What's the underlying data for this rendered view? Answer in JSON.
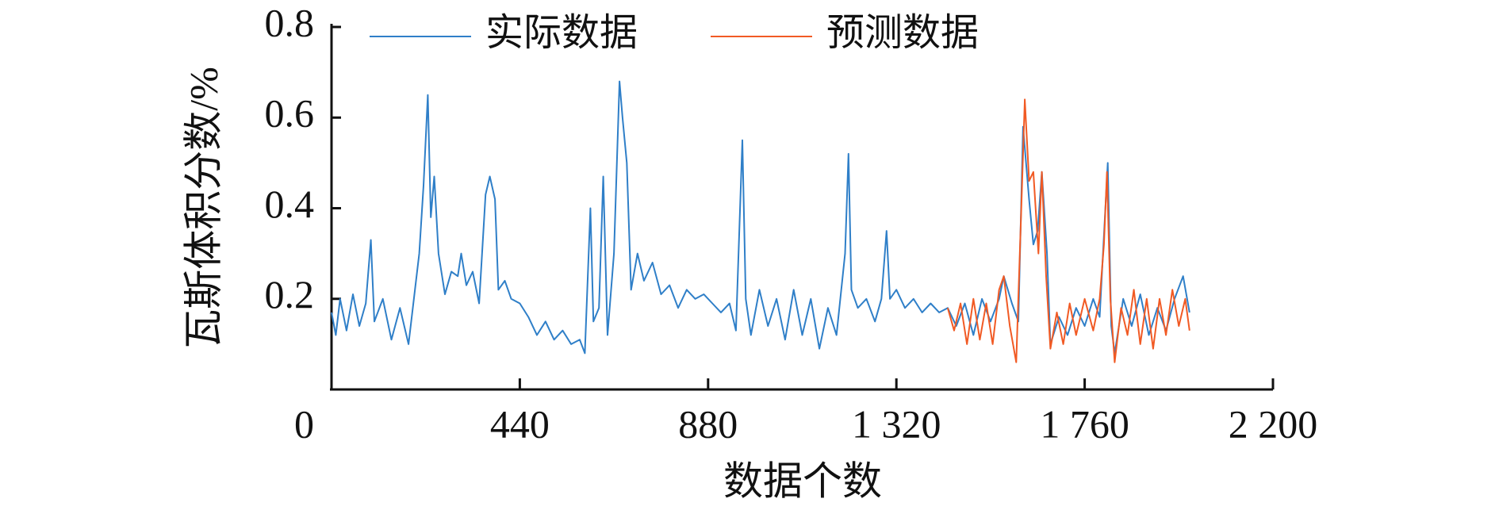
{
  "chart_data": {
    "type": "line",
    "x_label": "数据个数",
    "y_label": "瓦斯体积分数/%",
    "xlim": [
      0,
      2200
    ],
    "xticks": [
      0,
      440,
      880,
      {
        "value": 1320,
        "label": "1 320"
      },
      {
        "value": 1760,
        "label": "1 760"
      },
      {
        "value": 2200,
        "label": "2 200"
      }
    ],
    "ylim": [
      0,
      0.8
    ],
    "yticks": [
      0.2,
      0.4,
      0.6,
      0.8
    ],
    "legend": "top",
    "grid": false,
    "series": [
      {
        "name": "实际数据",
        "color": "#2f7fc8",
        "x": [
          0,
          10,
          20,
          35,
          50,
          65,
          80,
          92,
          100,
          120,
          140,
          160,
          180,
          195,
          205,
          215,
          225,
          232,
          240,
          250,
          265,
          280,
          295,
          303,
          315,
          330,
          345,
          360,
          370,
          382,
          390,
          405,
          420,
          440,
          460,
          480,
          500,
          520,
          540,
          560,
          580,
          592,
          605,
          612,
          625,
          635,
          645,
          660,
          673,
          680,
          690,
          700,
          715,
          730,
          750,
          770,
          790,
          810,
          830,
          850,
          870,
          890,
          910,
          930,
          945,
          960,
          968,
          980,
          1000,
          1020,
          1040,
          1060,
          1080,
          1100,
          1120,
          1140,
          1160,
          1180,
          1200,
          1208,
          1215,
          1230,
          1250,
          1270,
          1285,
          1297,
          1305,
          1320,
          1340,
          1360,
          1380,
          1400,
          1420,
          1440,
          1460,
          1480,
          1500,
          1520,
          1540,
          1560,
          1571,
          1590,
          1605,
          1616,
          1630,
          1640,
          1650,
          1660,
          1672,
          1680,
          1700,
          1720,
          1740,
          1760,
          1780,
          1795,
          1814,
          1822,
          1830,
          1850,
          1870,
          1890,
          1910,
          1930,
          1950,
          1970,
          1990,
          2005
        ],
        "values": [
          0.17,
          0.12,
          0.2,
          0.13,
          0.21,
          0.14,
          0.19,
          0.33,
          0.15,
          0.2,
          0.11,
          0.18,
          0.1,
          0.22,
          0.3,
          0.45,
          0.65,
          0.38,
          0.47,
          0.3,
          0.21,
          0.26,
          0.25,
          0.3,
          0.23,
          0.26,
          0.19,
          0.43,
          0.47,
          0.42,
          0.22,
          0.24,
          0.2,
          0.19,
          0.16,
          0.12,
          0.15,
          0.11,
          0.13,
          0.1,
          0.11,
          0.08,
          0.4,
          0.15,
          0.18,
          0.47,
          0.12,
          0.3,
          0.68,
          0.6,
          0.5,
          0.22,
          0.3,
          0.24,
          0.28,
          0.21,
          0.23,
          0.18,
          0.22,
          0.2,
          0.21,
          0.19,
          0.17,
          0.19,
          0.13,
          0.55,
          0.2,
          0.12,
          0.22,
          0.14,
          0.2,
          0.11,
          0.22,
          0.12,
          0.2,
          0.09,
          0.18,
          0.12,
          0.3,
          0.52,
          0.22,
          0.18,
          0.2,
          0.15,
          0.2,
          0.35,
          0.2,
          0.22,
          0.18,
          0.2,
          0.17,
          0.19,
          0.17,
          0.18,
          0.14,
          0.19,
          0.12,
          0.2,
          0.15,
          0.2,
          0.25,
          0.19,
          0.15,
          0.58,
          0.42,
          0.32,
          0.35,
          0.48,
          0.3,
          0.1,
          0.16,
          0.12,
          0.18,
          0.14,
          0.2,
          0.16,
          0.5,
          0.14,
          0.08,
          0.2,
          0.14,
          0.21,
          0.12,
          0.18,
          0.13,
          0.2,
          0.25,
          0.17
        ]
      },
      {
        "name": "预测数据",
        "color": "#f15a24",
        "x": [
          1440,
          1455,
          1470,
          1485,
          1500,
          1515,
          1530,
          1545,
          1560,
          1571,
          1585,
          1600,
          1612,
          1620,
          1630,
          1640,
          1652,
          1660,
          1670,
          1680,
          1695,
          1710,
          1725,
          1740,
          1760,
          1780,
          1795,
          1805,
          1812,
          1820,
          1830,
          1845,
          1860,
          1875,
          1890,
          1905,
          1920,
          1935,
          1950,
          1965,
          1980,
          1995,
          2005
        ],
        "values": [
          0.18,
          0.13,
          0.19,
          0.1,
          0.2,
          0.11,
          0.19,
          0.1,
          0.22,
          0.25,
          0.14,
          0.06,
          0.4,
          0.64,
          0.46,
          0.48,
          0.3,
          0.48,
          0.25,
          0.09,
          0.17,
          0.1,
          0.19,
          0.12,
          0.2,
          0.13,
          0.2,
          0.32,
          0.48,
          0.2,
          0.06,
          0.18,
          0.12,
          0.22,
          0.1,
          0.2,
          0.09,
          0.2,
          0.12,
          0.22,
          0.14,
          0.2,
          0.13
        ]
      }
    ]
  }
}
